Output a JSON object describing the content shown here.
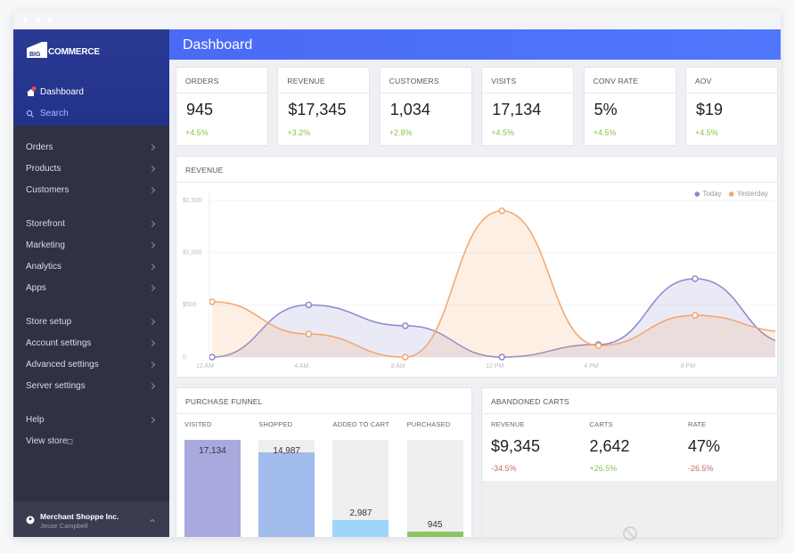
{
  "sidebar": {
    "logo_mark": "BIG",
    "logo_text": "COMMERCE",
    "top_nav": [
      "Dashboard",
      "Search"
    ],
    "nav_groups": [
      [
        "Orders",
        "Products",
        "Customers"
      ],
      [
        "Storefront",
        "Marketing",
        "Analytics",
        "Apps"
      ],
      [
        "Store setup",
        "Account settings",
        "Advanced settings",
        "Server settings"
      ],
      [
        "Help",
        "View store"
      ]
    ],
    "account": {
      "name": "Merchant Shoppe Inc.",
      "user": "Jesse Campbell"
    }
  },
  "header": {
    "title": "Dashboard"
  },
  "stats": [
    {
      "label": "ORDERS",
      "value": "945",
      "change": "+4.5%"
    },
    {
      "label": "REVENUE",
      "value": "$17,345",
      "change": "+3.2%"
    },
    {
      "label": "CUSTOMERS",
      "value": "1,034",
      "change": "+2.8%"
    },
    {
      "label": "VISITS",
      "value": "17,134",
      "change": "+4.5%"
    },
    {
      "label": "CONV RATE",
      "value": "5%",
      "change": "+4.5%"
    },
    {
      "label": "AOV",
      "value": "$19",
      "change": "+4.5%"
    }
  ],
  "chart_data": {
    "type": "line",
    "title": "REVENUE",
    "categories": [
      "12 AM",
      "4 AM",
      "8 AM",
      "12 PM",
      "4 PM",
      "8 PM",
      null
    ],
    "series": [
      {
        "name": "Today",
        "color": "#8c88cf",
        "values": [
          0,
          500,
          300,
          0,
          120,
          750,
          130
        ]
      },
      {
        "name": "Yesterday",
        "color": "#f4a56c",
        "values": [
          530,
          220,
          0,
          1400,
          110,
          400,
          240
        ]
      }
    ],
    "ylim": [
      0,
      1500
    ],
    "yticks": [
      0,
      {
        "value": 500,
        "label": "$500"
      },
      {
        "value": 1000,
        "label": "$1,000"
      },
      {
        "value": 1500,
        "label": "$1,500"
      }
    ],
    "grid": true,
    "legend": "top-right"
  },
  "funnel": {
    "title": "PURCHASE FUNNEL",
    "stages": [
      {
        "name": "VISITED",
        "value": 17134,
        "label": "17,134",
        "color": "#a9a9de"
      },
      {
        "name": "SHOPPED",
        "value": 14987,
        "label": "14,987",
        "color": "#a1bbec"
      },
      {
        "name": "ADDED TO CART",
        "value": 2987,
        "label": "2,987",
        "color": "#9fd4fb"
      },
      {
        "name": "PURCHASED",
        "value": 945,
        "label": "945",
        "color": "#8dc462"
      }
    ]
  },
  "abandoned_carts": {
    "title": "ABANDONED CARTS",
    "metrics": [
      {
        "label": "REVENUE",
        "value": "$9,345",
        "change": "-34.5%"
      },
      {
        "label": "CARTS",
        "value": "2,642",
        "change": "+26.5%"
      },
      {
        "label": "RATE",
        "value": "47%",
        "change": "-26.5%"
      }
    ]
  }
}
